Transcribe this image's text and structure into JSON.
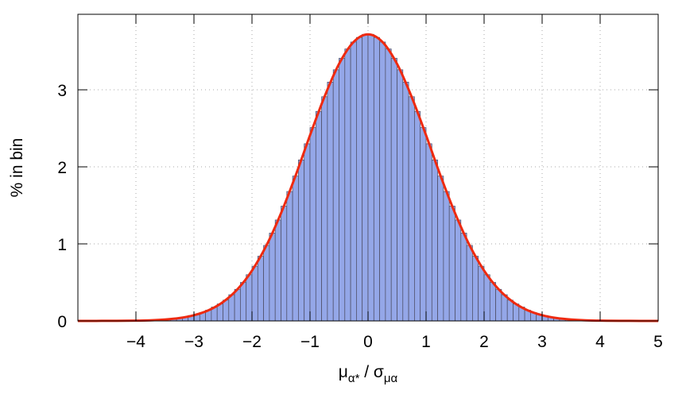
{
  "chart_data": {
    "type": "histogram",
    "xlabel": [
      "μ",
      "α*",
      " / σ",
      "μα"
    ],
    "ylabel": "% in bin",
    "bins": [
      -3.5,
      -3.4,
      -3.3,
      -3.2,
      -3.1,
      -3.0,
      -2.9,
      -2.8,
      -2.7,
      -2.6,
      -2.5,
      -2.4,
      -2.3,
      -2.2,
      -2.1,
      -2.0,
      -1.9,
      -1.8,
      -1.7,
      -1.6,
      -1.5,
      -1.4,
      -1.3,
      -1.2,
      -1.1,
      -1.0,
      -0.9,
      -0.8,
      -0.7,
      -0.6,
      -0.5,
      -0.4,
      -0.3,
      -0.2,
      -0.1,
      0.0,
      0.1,
      0.2,
      0.3,
      0.4,
      0.5,
      0.6,
      0.7,
      0.8,
      0.9,
      1.0,
      1.1,
      1.2,
      1.3,
      1.4,
      1.5,
      1.6,
      1.7,
      1.8,
      1.9,
      2.0,
      2.1,
      2.2,
      2.3,
      2.4,
      2.5,
      2.6,
      2.7,
      2.8,
      2.9,
      3.0,
      3.1,
      3.2,
      3.3,
      3.4,
      3.5
    ],
    "values": [
      0.02,
      0.03,
      0.04,
      0.05,
      0.07,
      0.08,
      0.11,
      0.14,
      0.18,
      0.22,
      0.27,
      0.34,
      0.41,
      0.5,
      0.6,
      0.71,
      0.84,
      0.98,
      1.14,
      1.31,
      1.49,
      1.68,
      1.88,
      2.09,
      2.3,
      2.51,
      2.72,
      2.91,
      3.1,
      3.26,
      3.41,
      3.53,
      3.62,
      3.68,
      3.72,
      3.72,
      3.68,
      3.62,
      3.53,
      3.41,
      3.26,
      3.1,
      2.91,
      2.72,
      2.51,
      2.3,
      2.09,
      1.88,
      1.68,
      1.49,
      1.31,
      1.14,
      0.98,
      0.84,
      0.71,
      0.6,
      0.5,
      0.41,
      0.34,
      0.27,
      0.22,
      0.18,
      0.14,
      0.11,
      0.08,
      0.07,
      0.05,
      0.04,
      0.03,
      0.02
    ],
    "color": "#94a7e8",
    "fit": {
      "color": "#ee2a10",
      "x": [
        -5,
        -4.5,
        -4,
        -3.75,
        -3.5,
        -3.25,
        -3,
        -2.75,
        -2.5,
        -2.25,
        -2,
        -1.75,
        -1.5,
        -1.25,
        -1,
        -0.75,
        -0.5,
        -0.25,
        0,
        0.25,
        0.5,
        0.75,
        1,
        1.25,
        1.5,
        1.75,
        2,
        2.25,
        2.5,
        2.75,
        3,
        3.25,
        3.5,
        3.75,
        4,
        4.5,
        5
      ],
      "values": [
        0,
        0.001,
        0.0035,
        0.008,
        0.018,
        0.037,
        0.074,
        0.138,
        0.245,
        0.411,
        0.653,
        0.981,
        1.398,
        1.883,
        2.41,
        2.911,
        3.336,
        3.62,
        3.72,
        3.62,
        3.336,
        2.911,
        2.41,
        1.883,
        1.398,
        0.981,
        0.653,
        0.411,
        0.245,
        0.138,
        0.074,
        0.037,
        0.018,
        0.008,
        0.0035,
        0.001,
        0
      ]
    },
    "xlim": [
      -5,
      5
    ],
    "xticks": [
      {
        "value": -4,
        "label": "−4"
      },
      {
        "value": -3,
        "label": "−3"
      },
      {
        "value": -2,
        "label": "−2"
      },
      {
        "value": -1,
        "label": "−1"
      },
      0,
      1,
      2,
      3,
      4,
      5
    ],
    "ylim": [
      0,
      3.98
    ],
    "yticks": [
      0,
      1,
      2,
      3
    ],
    "grid": true
  }
}
